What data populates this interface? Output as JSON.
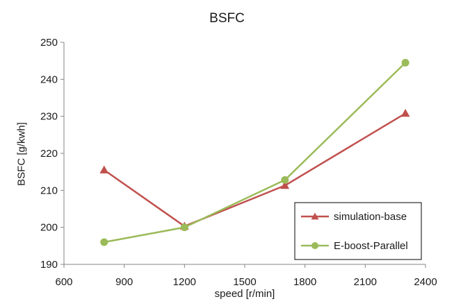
{
  "chart_data": {
    "type": "line",
    "title": "BSFC",
    "xlabel": "speed [r/min]",
    "ylabel": "BSFC [g/kwh]",
    "xlim": [
      600,
      2400
    ],
    "ylim": [
      190,
      250
    ],
    "xticks": [
      600,
      900,
      1200,
      1500,
      1800,
      2100,
      2400
    ],
    "yticks": [
      190,
      200,
      210,
      220,
      230,
      240,
      250
    ],
    "grid": false,
    "legend_position": "bottom-right",
    "series": [
      {
        "name": "simulation-base",
        "color": "#c0504d",
        "marker": "triangle",
        "x": [
          800,
          1200,
          1700,
          2300
        ],
        "y": [
          215.5,
          200.3,
          211.3,
          230.8
        ]
      },
      {
        "name": "E-boost-Parallel",
        "color": "#9bbb59",
        "marker": "circle",
        "x": [
          800,
          1200,
          1700,
          2300
        ],
        "y": [
          196,
          200,
          212.8,
          244.5
        ]
      }
    ]
  }
}
